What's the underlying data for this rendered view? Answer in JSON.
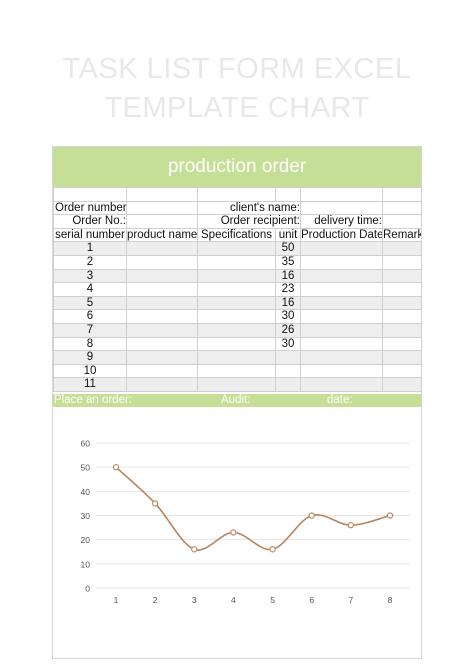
{
  "page": {
    "title_line1": "TASK LIST FORM EXCEL",
    "title_line2": "TEMPLATE CHART"
  },
  "banner": {
    "title": "production order"
  },
  "form": {
    "order_number_label": "Order number:",
    "client_name_label": "client's name:",
    "order_no_label": "Order No.:",
    "order_recipient_label": "Order recipient:",
    "delivery_time_label": "delivery time:"
  },
  "columns": [
    "serial number",
    "product name",
    "Specifications",
    "unit",
    "Production Date",
    "Remark"
  ],
  "rows": [
    {
      "serial": "1",
      "unit": "50"
    },
    {
      "serial": "2",
      "unit": "35"
    },
    {
      "serial": "3",
      "unit": "16"
    },
    {
      "serial": "4",
      "unit": "23"
    },
    {
      "serial": "5",
      "unit": "16"
    },
    {
      "serial": "6",
      "unit": "30"
    },
    {
      "serial": "7",
      "unit": "26"
    },
    {
      "serial": "8",
      "unit": "30"
    },
    {
      "serial": "9",
      "unit": ""
    },
    {
      "serial": "10",
      "unit": ""
    },
    {
      "serial": "11",
      "unit": ""
    }
  ],
  "footer": {
    "place_order": "Place an order:",
    "audit": "Audit:",
    "date": "date:"
  },
  "chart_data": {
    "type": "line",
    "x": [
      1,
      2,
      3,
      4,
      5,
      6,
      7,
      8
    ],
    "series": [
      {
        "values": [
          50,
          35,
          16,
          23,
          16,
          30,
          26,
          30
        ]
      }
    ],
    "xlabel": "",
    "ylabel": "",
    "ylim": [
      0,
      60
    ],
    "yticks": [
      0,
      10,
      20,
      30,
      40,
      50,
      60
    ],
    "grid": true,
    "color": "#b8835a"
  }
}
